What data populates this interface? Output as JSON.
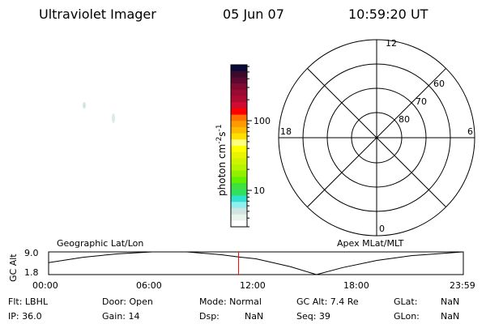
{
  "header": {
    "title": "Ultraviolet Imager",
    "date": "05 Jun 07",
    "time": "10:59:20 UT"
  },
  "colorbar": {
    "label": "photon cm",
    "exp1": "-2",
    "mid": "s",
    "exp2": "-1",
    "scale": "log",
    "ticks": [
      "100",
      "10"
    ],
    "colors": [
      "#0a0a3a",
      "#3a0a2a",
      "#5a0a30",
      "#800a30",
      "#9a0a32",
      "#b00a32",
      "#d00a30",
      "#ff0000",
      "#ff7000",
      "#ff9a00",
      "#ffbb00",
      "#ffe000",
      "#ffff80",
      "#ffff00",
      "#e8f400",
      "#d0f400",
      "#b4f400",
      "#90f000",
      "#60f000",
      "#40e040",
      "#30e060",
      "#30e0d0",
      "#90f0f0",
      "#d0e4e0",
      "#e8f4ec",
      "#ffffff"
    ]
  },
  "polar": {
    "mlt_labels": [
      "12",
      "6",
      "0",
      "18"
    ],
    "lat_labels": [
      "60",
      "70",
      "80"
    ]
  },
  "timeline": {
    "left_label": "Geographic Lat/Lon",
    "right_label": "Apex MLat/MLT",
    "ylabel": "GC Alt",
    "ymax": "9.0",
    "ymin": "1.8",
    "xticks": [
      "00:00",
      "06:00",
      "12:00",
      "18:00",
      "23:59"
    ],
    "current_hour": 10.99,
    "marker_color": "#ff0000",
    "altitude": [
      [
        0,
        5.6
      ],
      [
        2,
        7.3
      ],
      [
        4,
        8.4
      ],
      [
        6,
        9.0
      ],
      [
        8,
        9.0
      ],
      [
        10,
        8.1
      ],
      [
        11,
        7.4
      ],
      [
        12,
        6.8
      ],
      [
        14,
        4.3
      ],
      [
        15.5,
        1.8
      ],
      [
        17,
        4.0
      ],
      [
        19,
        6.3
      ],
      [
        21,
        7.8
      ],
      [
        23.98,
        9.0
      ]
    ]
  },
  "status": {
    "flt": "Flt: LBHL",
    "ip": "IP: 36.0",
    "door": "Door: Open",
    "gain": "Gain: 14",
    "mode": "Mode: Normal",
    "dsp_label": "Dsp:",
    "dsp_value": "NaN",
    "gcalt": "GC Alt: 7.4 Re",
    "seq": "Seq: 39",
    "glat_label": "GLat:",
    "glat_value": "NaN",
    "glon_label": "GLon:",
    "glon_value": "NaN"
  }
}
